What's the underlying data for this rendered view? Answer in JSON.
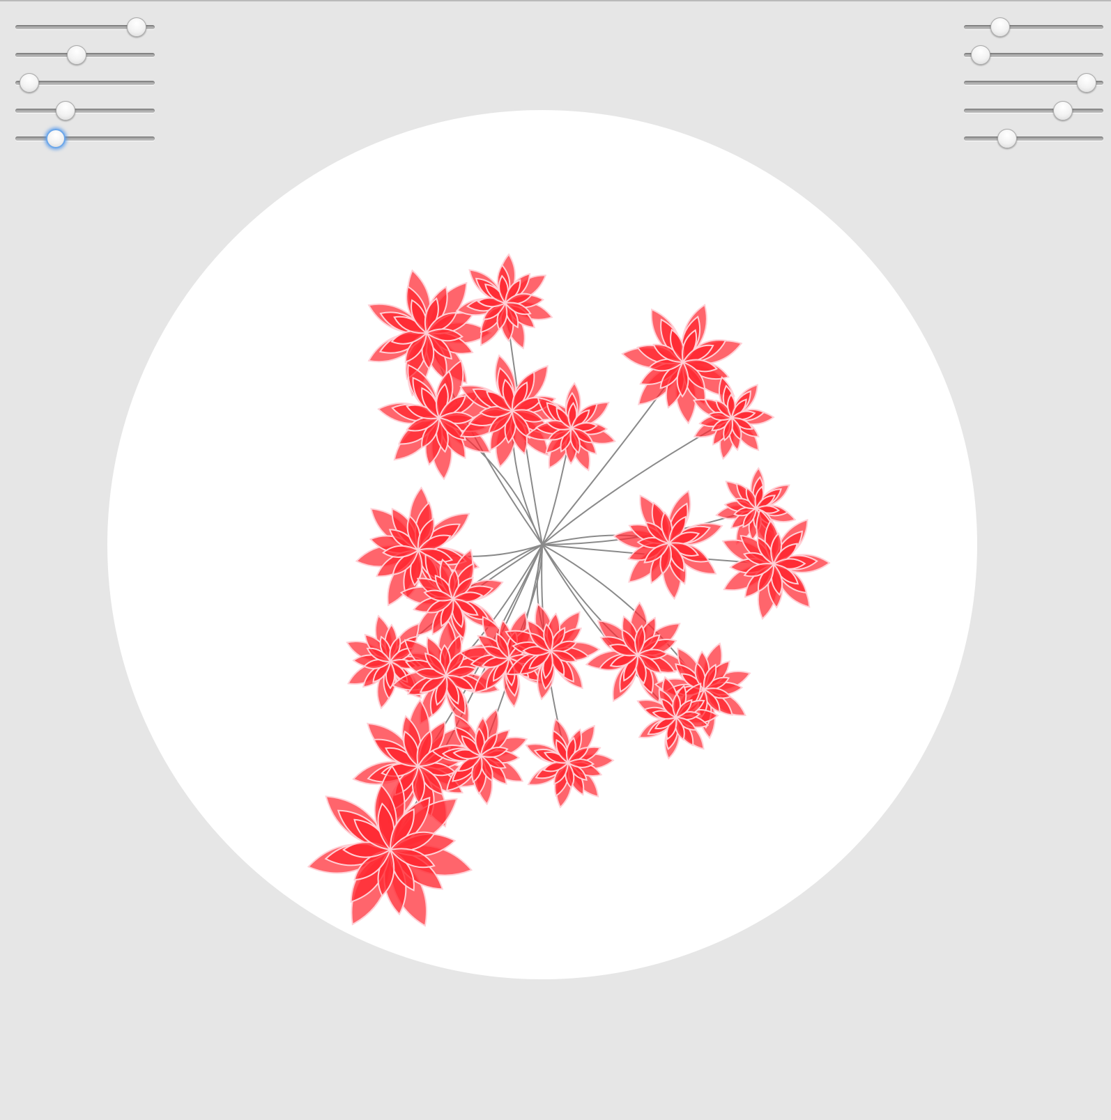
{
  "app": {
    "background_color": "#e6e6e6",
    "canvas_color": "#ffffff"
  },
  "controls": {
    "left_sliders": [
      {
        "name": "slider-left-1",
        "value": 0.87
      },
      {
        "name": "slider-left-2",
        "value": 0.44
      },
      {
        "name": "slider-left-3",
        "value": 0.1
      },
      {
        "name": "slider-left-4",
        "value": 0.36
      },
      {
        "name": "slider-left-5",
        "value": 0.29,
        "focused": true
      }
    ],
    "right_sliders": [
      {
        "name": "slider-right-1",
        "value": 0.26
      },
      {
        "name": "slider-right-2",
        "value": 0.12
      },
      {
        "name": "slider-right-3",
        "value": 0.88
      },
      {
        "name": "slider-right-4",
        "value": 0.71
      },
      {
        "name": "slider-right-5",
        "value": 0.31
      }
    ],
    "focus_color": "#6aa6ea"
  },
  "artwork": {
    "flower_fill": "#ff2a33",
    "flower_outline": "#ffd0d6",
    "stem_color": "#8a8a8a"
  }
}
